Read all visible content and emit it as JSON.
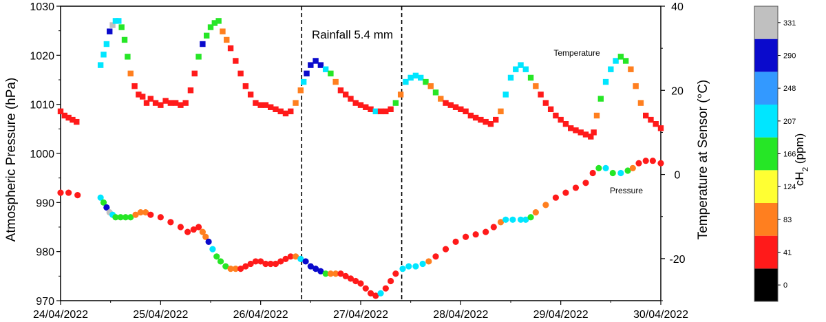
{
  "chart_data": {
    "type": "scatter",
    "x_ticks": [
      "24/04/2022",
      "25/04/2022",
      "26/04/2022",
      "27/04/2022",
      "28/04/2022",
      "29/04/2022",
      "30/04/2022"
    ],
    "x_range_days": [
      0,
      6
    ],
    "y_left": {
      "label": "Atmospheric Pressure (hPa)",
      "range": [
        970,
        1030
      ],
      "ticks": [
        "970",
        "980",
        "990",
        "1000",
        "1010",
        "1020",
        "1030"
      ]
    },
    "y_right": {
      "label": "Temperature at Sensor (°C)",
      "range": [
        -30,
        40
      ],
      "ticks": [
        "-20",
        "0",
        "20",
        "40"
      ]
    },
    "colorbar": {
      "label_main": "cH",
      "label_sub": "2",
      "label_tail": " (ppm)",
      "ticks": [
        "0",
        "41",
        "83",
        "124",
        "166",
        "207",
        "248",
        "290",
        "331"
      ],
      "colors": [
        "#000000",
        "#ff1a1a",
        "#ff7f1f",
        "#ffff33",
        "#26e626",
        "#00e6ff",
        "#3399ff",
        "#0a0acc",
        "#c0c0c0"
      ]
    },
    "annotations": {
      "rainfall": "Rainfall 5.4 mm",
      "temperature": "Temperature",
      "pressure": "Pressure"
    },
    "rainfall_window_days": [
      2.41,
      3.41
    ],
    "series": [
      {
        "name": "Pressure",
        "axis": "left",
        "marker": "circle",
        "points_day_value_ppm": [
          [
            0.0,
            992,
            30
          ],
          [
            0.08,
            992,
            30
          ],
          [
            0.17,
            991.5,
            30
          ],
          [
            0.4,
            991,
            190
          ],
          [
            0.43,
            990,
            140
          ],
          [
            0.46,
            989,
            250
          ],
          [
            0.49,
            988,
            300
          ],
          [
            0.52,
            987.5,
            190
          ],
          [
            0.55,
            987,
            140
          ],
          [
            0.6,
            987,
            140
          ],
          [
            0.65,
            987,
            140
          ],
          [
            0.7,
            987,
            140
          ],
          [
            0.75,
            987.5,
            70
          ],
          [
            0.8,
            988,
            70
          ],
          [
            0.85,
            988,
            70
          ],
          [
            0.9,
            987.5,
            30
          ],
          [
            1.0,
            987,
            30
          ],
          [
            1.1,
            986,
            30
          ],
          [
            1.2,
            985,
            30
          ],
          [
            1.27,
            984,
            30
          ],
          [
            1.33,
            984.5,
            30
          ],
          [
            1.38,
            985,
            30
          ],
          [
            1.42,
            984,
            60
          ],
          [
            1.45,
            983,
            70
          ],
          [
            1.48,
            982,
            260
          ],
          [
            1.52,
            980.5,
            190
          ],
          [
            1.56,
            979,
            140
          ],
          [
            1.6,
            978,
            140
          ],
          [
            1.65,
            977,
            140
          ],
          [
            1.7,
            976.5,
            70
          ],
          [
            1.75,
            976.5,
            70
          ],
          [
            1.8,
            976.5,
            30
          ],
          [
            1.85,
            977,
            30
          ],
          [
            1.9,
            977.5,
            30
          ],
          [
            1.95,
            978,
            30
          ],
          [
            2.0,
            978,
            30
          ],
          [
            2.05,
            977.5,
            30
          ],
          [
            2.1,
            977.5,
            30
          ],
          [
            2.15,
            977.5,
            30
          ],
          [
            2.2,
            978,
            30
          ],
          [
            2.25,
            978.5,
            30
          ],
          [
            2.3,
            979,
            30
          ],
          [
            2.35,
            979,
            70
          ],
          [
            2.4,
            978.5,
            190
          ],
          [
            2.45,
            978,
            250
          ],
          [
            2.5,
            977,
            250
          ],
          [
            2.55,
            976.5,
            250
          ],
          [
            2.6,
            976,
            250
          ],
          [
            2.65,
            975.5,
            140
          ],
          [
            2.7,
            975.5,
            70
          ],
          [
            2.75,
            975.5,
            70
          ],
          [
            2.8,
            975.5,
            30
          ],
          [
            2.85,
            975,
            30
          ],
          [
            2.9,
            974.5,
            30
          ],
          [
            2.95,
            974,
            30
          ],
          [
            3.0,
            973.5,
            30
          ],
          [
            3.05,
            972.5,
            30
          ],
          [
            3.1,
            971.5,
            30
          ],
          [
            3.15,
            971,
            30
          ],
          [
            3.2,
            971.5,
            190
          ],
          [
            3.25,
            972.5,
            30
          ],
          [
            3.3,
            974,
            30
          ],
          [
            3.35,
            975.5,
            30
          ],
          [
            3.42,
            976.5,
            190
          ],
          [
            3.48,
            977,
            190
          ],
          [
            3.55,
            977,
            190
          ],
          [
            3.62,
            977.5,
            190
          ],
          [
            3.68,
            978,
            70
          ],
          [
            3.75,
            979,
            30
          ],
          [
            3.85,
            980.5,
            30
          ],
          [
            3.95,
            982,
            30
          ],
          [
            4.05,
            983,
            30
          ],
          [
            4.15,
            983.5,
            30
          ],
          [
            4.25,
            984,
            30
          ],
          [
            4.33,
            985,
            30
          ],
          [
            4.4,
            986,
            70
          ],
          [
            4.45,
            986.5,
            190
          ],
          [
            4.52,
            986.5,
            190
          ],
          [
            4.6,
            986.5,
            190
          ],
          [
            4.65,
            986.5,
            190
          ],
          [
            4.7,
            987,
            140
          ],
          [
            4.75,
            988,
            70
          ],
          [
            4.85,
            989.5,
            70
          ],
          [
            4.95,
            991,
            30
          ],
          [
            5.05,
            992,
            30
          ],
          [
            5.15,
            993,
            30
          ],
          [
            5.25,
            994,
            30
          ],
          [
            5.32,
            996,
            30
          ],
          [
            5.38,
            997,
            140
          ],
          [
            5.45,
            997,
            190
          ],
          [
            5.52,
            996,
            140
          ],
          [
            5.6,
            996,
            190
          ],
          [
            5.67,
            996.5,
            140
          ],
          [
            5.72,
            997,
            70
          ],
          [
            5.78,
            998,
            30
          ],
          [
            5.85,
            998.5,
            30
          ],
          [
            5.92,
            998.5,
            30
          ],
          [
            6.0,
            998,
            30
          ]
        ]
      },
      {
        "name": "Temperature",
        "axis": "right",
        "marker": "square",
        "points_day_value_ppm": [
          [
            0.0,
            15,
            30
          ],
          [
            0.04,
            14,
            30
          ],
          [
            0.08,
            13.5,
            30
          ],
          [
            0.12,
            13,
            30
          ],
          [
            0.16,
            12.5,
            30
          ],
          [
            0.4,
            26,
            190
          ],
          [
            0.43,
            28.5,
            190
          ],
          [
            0.46,
            31,
            190
          ],
          [
            0.49,
            34,
            250
          ],
          [
            0.52,
            35.5,
            300
          ],
          [
            0.55,
            36.5,
            190
          ],
          [
            0.58,
            36.5,
            190
          ],
          [
            0.61,
            35,
            140
          ],
          [
            0.64,
            32,
            140
          ],
          [
            0.67,
            28,
            140
          ],
          [
            0.7,
            24,
            70
          ],
          [
            0.74,
            21,
            30
          ],
          [
            0.78,
            19,
            30
          ],
          [
            0.82,
            18.5,
            30
          ],
          [
            0.86,
            17,
            30
          ],
          [
            0.9,
            18,
            30
          ],
          [
            0.95,
            17,
            30
          ],
          [
            1.0,
            16.5,
            30
          ],
          [
            1.05,
            17.5,
            30
          ],
          [
            1.1,
            17,
            30
          ],
          [
            1.15,
            17,
            30
          ],
          [
            1.2,
            16.5,
            30
          ],
          [
            1.25,
            17,
            30
          ],
          [
            1.3,
            20,
            30
          ],
          [
            1.34,
            24,
            30
          ],
          [
            1.38,
            28,
            140
          ],
          [
            1.42,
            31,
            250
          ],
          [
            1.46,
            33,
            140
          ],
          [
            1.5,
            35,
            140
          ],
          [
            1.54,
            36,
            140
          ],
          [
            1.58,
            36.5,
            140
          ],
          [
            1.62,
            34,
            70
          ],
          [
            1.66,
            32,
            70
          ],
          [
            1.7,
            30,
            30
          ],
          [
            1.75,
            27,
            30
          ],
          [
            1.8,
            24,
            30
          ],
          [
            1.85,
            21,
            30
          ],
          [
            1.9,
            19,
            30
          ],
          [
            1.95,
            17,
            30
          ],
          [
            2.0,
            16.5,
            30
          ],
          [
            2.05,
            16.5,
            30
          ],
          [
            2.1,
            16,
            30
          ],
          [
            2.15,
            15.5,
            30
          ],
          [
            2.2,
            15,
            30
          ],
          [
            2.25,
            14.5,
            30
          ],
          [
            2.3,
            15,
            30
          ],
          [
            2.35,
            17,
            70
          ],
          [
            2.4,
            20,
            70
          ],
          [
            2.43,
            22,
            190
          ],
          [
            2.46,
            24,
            250
          ],
          [
            2.5,
            26,
            250
          ],
          [
            2.55,
            27,
            250
          ],
          [
            2.6,
            26,
            250
          ],
          [
            2.65,
            25,
            190
          ],
          [
            2.7,
            24,
            140
          ],
          [
            2.75,
            22,
            70
          ],
          [
            2.8,
            20,
            30
          ],
          [
            2.85,
            19,
            30
          ],
          [
            2.9,
            18,
            30
          ],
          [
            2.95,
            17,
            30
          ],
          [
            3.0,
            16.5,
            30
          ],
          [
            3.05,
            16,
            30
          ],
          [
            3.1,
            15.5,
            30
          ],
          [
            3.15,
            15,
            190
          ],
          [
            3.2,
            15,
            30
          ],
          [
            3.25,
            15,
            30
          ],
          [
            3.3,
            15.5,
            30
          ],
          [
            3.35,
            17,
            140
          ],
          [
            3.4,
            19,
            70
          ],
          [
            3.45,
            22,
            190
          ],
          [
            3.5,
            23,
            190
          ],
          [
            3.55,
            23.5,
            190
          ],
          [
            3.6,
            23,
            190
          ],
          [
            3.65,
            22,
            140
          ],
          [
            3.7,
            21,
            70
          ],
          [
            3.75,
            19.5,
            140
          ],
          [
            3.8,
            18,
            70
          ],
          [
            3.85,
            17,
            30
          ],
          [
            3.9,
            16.5,
            30
          ],
          [
            3.95,
            16,
            30
          ],
          [
            4.0,
            15.5,
            30
          ],
          [
            4.05,
            15,
            30
          ],
          [
            4.1,
            14,
            30
          ],
          [
            4.15,
            13.5,
            30
          ],
          [
            4.2,
            13,
            30
          ],
          [
            4.25,
            12.5,
            30
          ],
          [
            4.3,
            12,
            30
          ],
          [
            4.35,
            13,
            30
          ],
          [
            4.4,
            15,
            70
          ],
          [
            4.45,
            19,
            190
          ],
          [
            4.5,
            23,
            190
          ],
          [
            4.55,
            25,
            190
          ],
          [
            4.6,
            26,
            190
          ],
          [
            4.65,
            25,
            190
          ],
          [
            4.7,
            23,
            140
          ],
          [
            4.75,
            21,
            70
          ],
          [
            4.8,
            19,
            30
          ],
          [
            4.85,
            17,
            30
          ],
          [
            4.9,
            15.5,
            30
          ],
          [
            4.95,
            14,
            30
          ],
          [
            5.0,
            13,
            30
          ],
          [
            5.05,
            12,
            30
          ],
          [
            5.1,
            11,
            30
          ],
          [
            5.15,
            10.5,
            30
          ],
          [
            5.2,
            10,
            30
          ],
          [
            5.25,
            9.5,
            30
          ],
          [
            5.3,
            9,
            30
          ],
          [
            5.33,
            10,
            30
          ],
          [
            5.36,
            14,
            70
          ],
          [
            5.4,
            18,
            140
          ],
          [
            5.45,
            22,
            190
          ],
          [
            5.5,
            25,
            190
          ],
          [
            5.55,
            27,
            190
          ],
          [
            5.6,
            28,
            140
          ],
          [
            5.65,
            27,
            140
          ],
          [
            5.7,
            25,
            70
          ],
          [
            5.75,
            21,
            70
          ],
          [
            5.8,
            17,
            70
          ],
          [
            5.85,
            14,
            30
          ],
          [
            5.9,
            13,
            30
          ],
          [
            5.95,
            12,
            30
          ],
          [
            6.0,
            11,
            30
          ]
        ]
      }
    ]
  }
}
